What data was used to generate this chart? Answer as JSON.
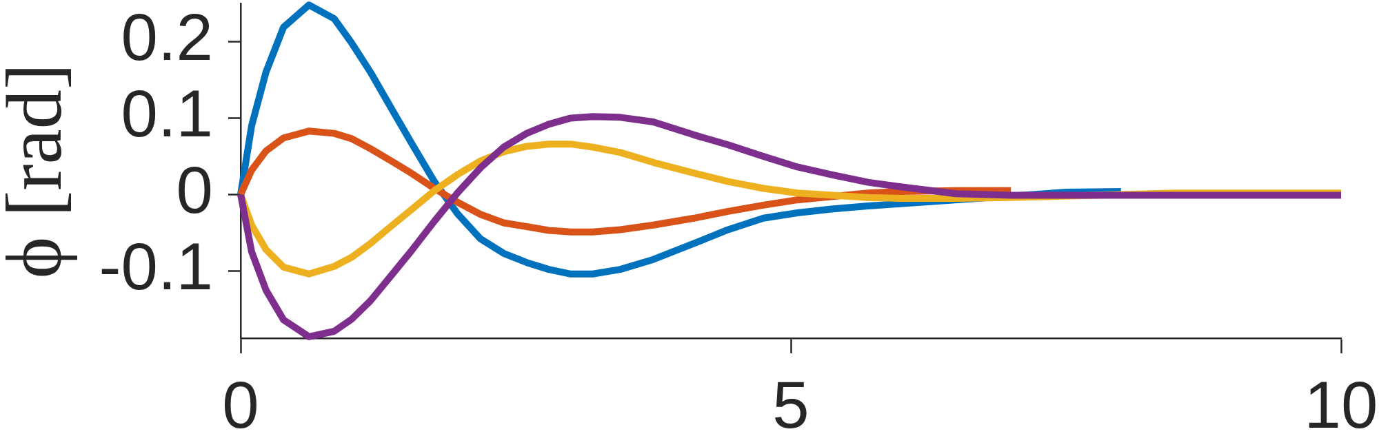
{
  "chart_data": {
    "type": "line",
    "ylabel": "ϕ [rad]",
    "xlim": [
      0,
      10
    ],
    "xticks": [
      0,
      5,
      10
    ],
    "ylim": [
      -0.188,
      0.25
    ],
    "yticks": [
      -0.1,
      0,
      0.1,
      0.2
    ],
    "series": [
      {
        "color": "#0072bd",
        "x": [
          0,
          0.1,
          0.23,
          0.39,
          0.62,
          0.85,
          1.01,
          1.18,
          1.38,
          1.55,
          1.76,
          1.97,
          2.18,
          2.39,
          2.6,
          2.8,
          3.0,
          3.2,
          3.45,
          3.75,
          4.12,
          4.43,
          4.75,
          5.06,
          5.37,
          5.7,
          7.5,
          8.0
        ],
        "values": [
          0,
          0.09,
          0.16,
          0.219,
          0.248,
          0.23,
          0.198,
          0.16,
          0.11,
          0.068,
          0.017,
          -0.025,
          -0.058,
          -0.077,
          -0.089,
          -0.098,
          -0.104,
          -0.104,
          -0.098,
          -0.085,
          -0.064,
          -0.046,
          -0.031,
          -0.024,
          -0.019,
          -0.015,
          0.003,
          0.004
        ]
      },
      {
        "color": "#d95319",
        "x": [
          0,
          0.1,
          0.23,
          0.39,
          0.62,
          0.85,
          1.01,
          1.18,
          1.38,
          1.55,
          1.76,
          1.97,
          2.18,
          2.39,
          2.6,
          2.8,
          3.0,
          3.2,
          3.45,
          3.75,
          4.12,
          4.43,
          4.75,
          5.06,
          5.7,
          6.0,
          6.5,
          7.0
        ],
        "values": [
          0,
          0.032,
          0.057,
          0.074,
          0.083,
          0.08,
          0.073,
          0.06,
          0.043,
          0.028,
          0.008,
          -0.01,
          -0.026,
          -0.037,
          -0.042,
          -0.047,
          -0.049,
          -0.049,
          -0.046,
          -0.04,
          -0.031,
          -0.022,
          -0.014,
          -0.007,
          0.002,
          0.004,
          0.005,
          0.005
        ]
      },
      {
        "color": "#edb120",
        "x": [
          0,
          0.1,
          0.23,
          0.39,
          0.62,
          0.85,
          1.01,
          1.18,
          1.38,
          1.55,
          1.76,
          1.97,
          2.18,
          2.39,
          2.6,
          2.8,
          3.0,
          3.2,
          3.45,
          3.75,
          4.12,
          4.43,
          4.75,
          5.06,
          5.7,
          6.0,
          6.5,
          7.0,
          8.5,
          9.0,
          10.0
        ],
        "values": [
          0,
          -0.04,
          -0.072,
          -0.095,
          -0.104,
          -0.094,
          -0.082,
          -0.064,
          -0.04,
          -0.02,
          0.005,
          0.026,
          0.044,
          0.056,
          0.063,
          0.066,
          0.066,
          0.062,
          0.055,
          0.042,
          0.028,
          0.017,
          0.008,
          0.002,
          -0.004,
          -0.005,
          -0.005,
          -0.004,
          0.002,
          0.002,
          0.002
        ]
      },
      {
        "color": "#7e2f8e",
        "x": [
          0,
          0.1,
          0.23,
          0.39,
          0.62,
          0.85,
          1.01,
          1.18,
          1.38,
          1.55,
          1.76,
          1.97,
          2.18,
          2.39,
          2.6,
          2.8,
          3.0,
          3.2,
          3.45,
          3.75,
          4.12,
          4.43,
          4.75,
          5.06,
          5.37,
          5.7,
          6.0,
          6.5,
          7.0,
          8.0,
          9.0,
          10.0
        ],
        "values": [
          0,
          -0.075,
          -0.125,
          -0.164,
          -0.186,
          -0.179,
          -0.163,
          -0.139,
          -0.104,
          -0.074,
          -0.035,
          0.002,
          0.035,
          0.062,
          0.08,
          0.092,
          0.1,
          0.102,
          0.101,
          0.095,
          0.078,
          0.065,
          0.05,
          0.036,
          0.026,
          0.016,
          0.01,
          0.001,
          -0.001,
          -0.001,
          -0.001,
          -0.001
        ]
      }
    ]
  }
}
